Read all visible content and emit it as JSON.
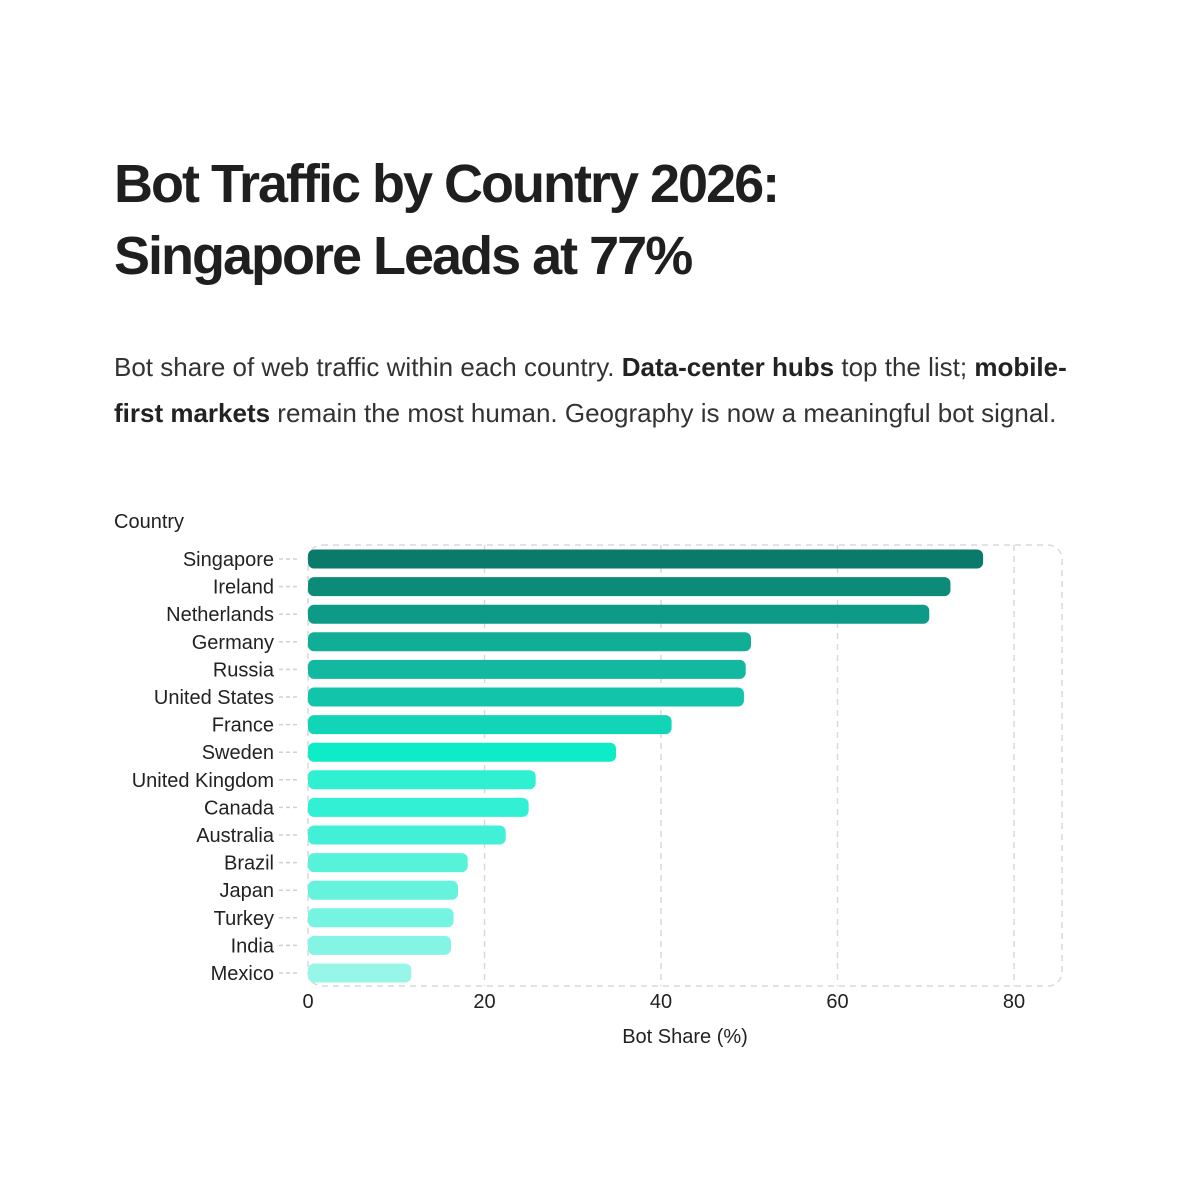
{
  "header": {
    "title_line1": "Bot Traffic by Country 2026:",
    "title_line2": "Singapore Leads at 77%",
    "subtitle_part1": "Bot share of web traffic within each country. ",
    "subtitle_bold1": "Data-center hubs",
    "subtitle_part2": " top the list; ",
    "subtitle_bold2": "mobile-first markets",
    "subtitle_part3": " remain the most human. Geography is now a meaningful bot signal."
  },
  "chart_data": {
    "type": "bar",
    "orientation": "horizontal",
    "categories": [
      "Singapore",
      "Ireland",
      "Netherlands",
      "Germany",
      "Russia",
      "United States",
      "France",
      "Sweden",
      "United Kingdom",
      "Canada",
      "Australia",
      "Brazil",
      "Japan",
      "Turkey",
      "India",
      "Mexico"
    ],
    "values": [
      76.5,
      72.8,
      70.4,
      50.2,
      49.6,
      49.4,
      41.2,
      34.9,
      25.8,
      25.0,
      22.4,
      18.1,
      17.0,
      16.5,
      16.2,
      11.7
    ],
    "colors": [
      "#0a7a6b",
      "#0c8b79",
      "#0d9a86",
      "#10ad97",
      "#12b8a0",
      "#12c4a9",
      "#12d5b8",
      "#0cecc6",
      "#2ff1d2",
      "#31f0d3",
      "#42f0d7",
      "#56f2da",
      "#65f3dd",
      "#74f4e1",
      "#84f5e4",
      "#98f6e8"
    ],
    "xlabel": "Bot Share (%)",
    "ylabel": "Country",
    "xlim": [
      0,
      85
    ],
    "xticks": [
      0,
      20,
      40,
      60,
      80
    ],
    "grid": true
  }
}
